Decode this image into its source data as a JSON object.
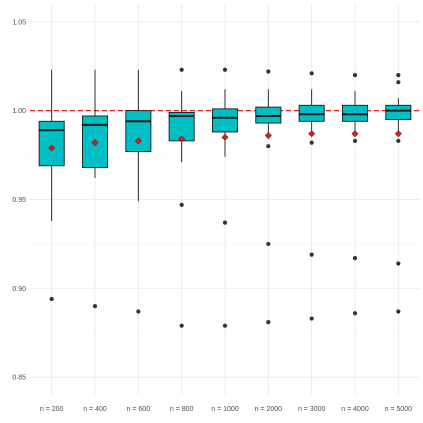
{
  "chart_data": {
    "type": "box",
    "title": "",
    "xlabel": "",
    "ylabel": "",
    "ylim": [
      0.84,
      1.06
    ],
    "yticks": [
      "0.85",
      "0.90",
      "0.95",
      "1.00",
      "1.05"
    ],
    "ytick_values": [
      0.85,
      0.9,
      0.95,
      1.0,
      1.05
    ],
    "categories": [
      "n = 200",
      "n = 400",
      "n = 600",
      "n = 800",
      "n = 1000",
      "n = 2000",
      "n = 3000",
      "n = 4000",
      "n = 5000"
    ],
    "reference_line": 1.0,
    "grid": true,
    "legend": "none",
    "colors": {
      "box_fill": "#00bfc4",
      "box_stroke": "#1a1a1a",
      "mean_marker": "#cc2222",
      "reference_line": "#e31a1c",
      "outlier": "#333333",
      "grid": "#ebebeb"
    },
    "boxes": [
      {
        "category": "n = 200",
        "whisker_low": 0.938,
        "q1": 0.969,
        "median": 0.989,
        "q3": 0.994,
        "whisker_high": 1.023,
        "mean": 0.979,
        "outliers": [
          0.894
        ]
      },
      {
        "category": "n = 400",
        "whisker_low": 0.962,
        "q1": 0.968,
        "median": 0.992,
        "q3": 0.997,
        "whisker_high": 1.023,
        "mean": 0.982,
        "outliers": [
          0.89
        ]
      },
      {
        "category": "n = 600",
        "whisker_low": 0.949,
        "q1": 0.977,
        "median": 0.994,
        "q3": 1.0,
        "whisker_high": 1.023,
        "mean": 0.983,
        "outliers": [
          0.887
        ]
      },
      {
        "category": "n = 800",
        "whisker_low": 0.971,
        "q1": 0.983,
        "median": 0.997,
        "q3": 0.999,
        "whisker_high": 1.011,
        "mean": 0.984,
        "outliers": [
          1.023,
          0.947,
          0.879
        ]
      },
      {
        "category": "n = 1000",
        "whisker_low": 0.974,
        "q1": 0.988,
        "median": 0.996,
        "q3": 1.001,
        "whisker_high": 1.012,
        "mean": 0.985,
        "outliers": [
          1.023,
          0.937,
          0.879
        ]
      },
      {
        "category": "n = 2000",
        "whisker_low": 0.984,
        "q1": 0.993,
        "median": 0.997,
        "q3": 1.002,
        "whisker_high": 1.012,
        "mean": 0.986,
        "outliers": [
          1.022,
          0.98,
          0.925,
          0.881
        ]
      },
      {
        "category": "n = 3000",
        "whisker_low": 0.986,
        "q1": 0.994,
        "median": 0.998,
        "q3": 1.003,
        "whisker_high": 1.012,
        "mean": 0.987,
        "outliers": [
          1.021,
          0.982,
          0.919,
          0.883
        ]
      },
      {
        "category": "n = 4000",
        "whisker_low": 0.987,
        "q1": 0.994,
        "median": 0.998,
        "q3": 1.003,
        "whisker_high": 1.011,
        "mean": 0.987,
        "outliers": [
          1.02,
          0.983,
          0.917,
          0.886
        ]
      },
      {
        "category": "n = 5000",
        "whisker_low": 0.988,
        "q1": 0.995,
        "median": 1.0,
        "q3": 1.003,
        "whisker_high": 1.007,
        "mean": 0.987,
        "outliers": [
          1.02,
          1.016,
          0.983,
          0.914,
          0.887
        ]
      }
    ]
  }
}
